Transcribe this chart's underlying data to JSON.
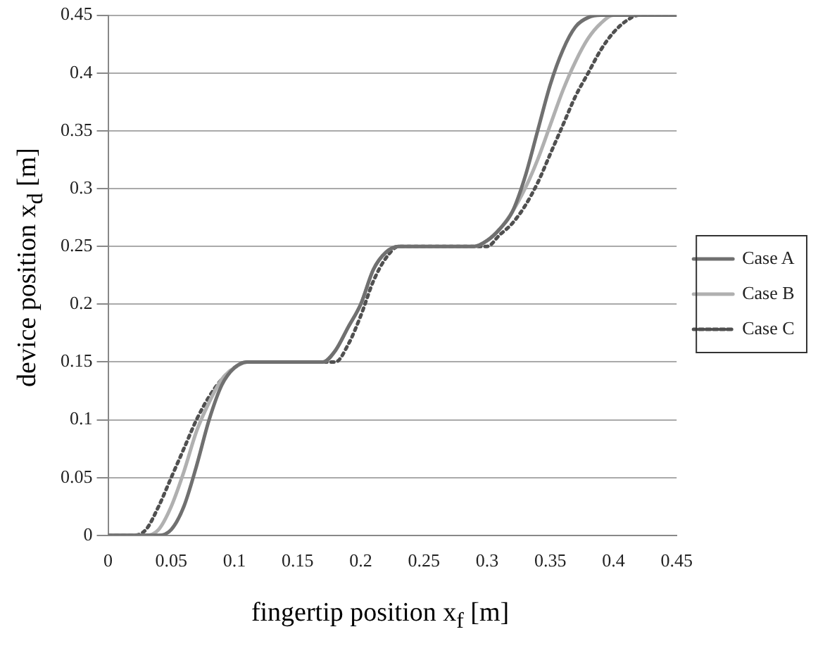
{
  "chart_data": {
    "type": "line",
    "xlabel": "fingertip position x$_{f}$  [m]",
    "ylabel": "device position x$_{d}$  [m]",
    "xlim": [
      0,
      0.45
    ],
    "ylim": [
      0,
      0.45
    ],
    "xticks": [
      0,
      0.05,
      0.1,
      0.15,
      0.2,
      0.25,
      0.3,
      0.35,
      0.4,
      0.45
    ],
    "yticks": [
      0,
      0.05,
      0.1,
      0.15,
      0.2,
      0.25,
      0.3,
      0.35,
      0.4,
      0.45
    ],
    "grid": "y",
    "legend": "right",
    "marker": "none",
    "series": [
      {
        "name": "Case A",
        "color": "#707070",
        "line_style": "solid",
        "x": [
          0,
          0.04,
          0.05,
          0.06,
          0.07,
          0.08,
          0.09,
          0.1,
          0.11,
          0.17,
          0.18,
          0.19,
          0.2,
          0.21,
          0.22,
          0.23,
          0.29,
          0.3,
          0.31,
          0.32,
          0.33,
          0.34,
          0.35,
          0.36,
          0.37,
          0.38,
          0.39,
          0.45
        ],
        "values": [
          0,
          0,
          0.005,
          0.025,
          0.06,
          0.1,
          0.13,
          0.145,
          0.15,
          0.15,
          0.16,
          0.18,
          0.2,
          0.23,
          0.245,
          0.25,
          0.25,
          0.255,
          0.265,
          0.28,
          0.31,
          0.35,
          0.39,
          0.42,
          0.44,
          0.448,
          0.45,
          0.45
        ]
      },
      {
        "name": "Case B",
        "color": "#b0b0b0",
        "line_style": "solid",
        "x": [
          0,
          0.03,
          0.04,
          0.05,
          0.06,
          0.07,
          0.08,
          0.09,
          0.1,
          0.11,
          0.17,
          0.18,
          0.19,
          0.2,
          0.21,
          0.22,
          0.23,
          0.29,
          0.3,
          0.31,
          0.32,
          0.33,
          0.34,
          0.35,
          0.36,
          0.37,
          0.38,
          0.39,
          0.4,
          0.45
        ],
        "values": [
          0,
          0,
          0.005,
          0.025,
          0.055,
          0.09,
          0.115,
          0.135,
          0.145,
          0.15,
          0.15,
          0.16,
          0.18,
          0.2,
          0.23,
          0.245,
          0.25,
          0.25,
          0.255,
          0.265,
          0.28,
          0.3,
          0.325,
          0.355,
          0.385,
          0.41,
          0.43,
          0.443,
          0.45,
          0.45
        ]
      },
      {
        "name": "Case C",
        "color": "#505050",
        "line_style": "dotted",
        "x": [
          0,
          0.02,
          0.03,
          0.04,
          0.05,
          0.06,
          0.07,
          0.08,
          0.09,
          0.1,
          0.11,
          0.18,
          0.19,
          0.2,
          0.21,
          0.22,
          0.23,
          0.3,
          0.31,
          0.32,
          0.33,
          0.34,
          0.35,
          0.36,
          0.37,
          0.38,
          0.39,
          0.4,
          0.41,
          0.42,
          0.45
        ],
        "values": [
          0,
          0,
          0.005,
          0.025,
          0.05,
          0.075,
          0.1,
          0.12,
          0.135,
          0.145,
          0.15,
          0.15,
          0.165,
          0.19,
          0.22,
          0.24,
          0.25,
          0.25,
          0.26,
          0.27,
          0.285,
          0.305,
          0.33,
          0.355,
          0.38,
          0.4,
          0.42,
          0.435,
          0.445,
          0.45,
          0.45
        ]
      }
    ]
  }
}
